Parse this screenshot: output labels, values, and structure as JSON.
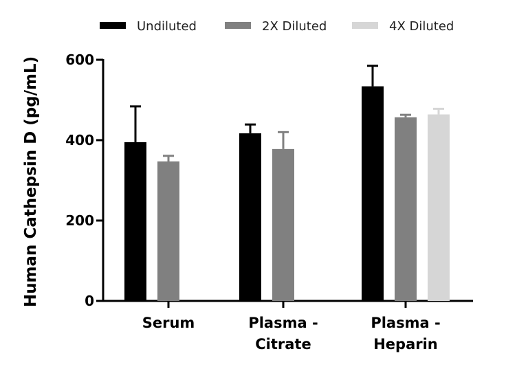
{
  "chart_data": {
    "type": "bar",
    "title": "",
    "xlabel": "",
    "ylabel": "Human Cathepsin D (pg/mL)",
    "ylim": [
      0,
      600
    ],
    "yticks": [
      "0",
      "200",
      "400",
      "600"
    ],
    "legend_position": "top",
    "categories": [
      [
        "Serum"
      ],
      [
        "Plasma -",
        "Citrate"
      ],
      [
        "Plasma -",
        "Heparin"
      ]
    ],
    "series": [
      {
        "name": "Undiluted",
        "color": "#000000",
        "values": [
          395,
          417,
          534
        ],
        "errors": [
          89,
          22,
          51
        ]
      },
      {
        "name": "2X Diluted",
        "color": "#808080",
        "values": [
          347,
          378,
          457
        ],
        "errors": [
          14,
          42,
          6
        ]
      },
      {
        "name": "4X Diluted",
        "color": "#d6d6d6",
        "values": [
          null,
          null,
          464
        ],
        "errors": [
          null,
          null,
          14
        ]
      }
    ]
  }
}
